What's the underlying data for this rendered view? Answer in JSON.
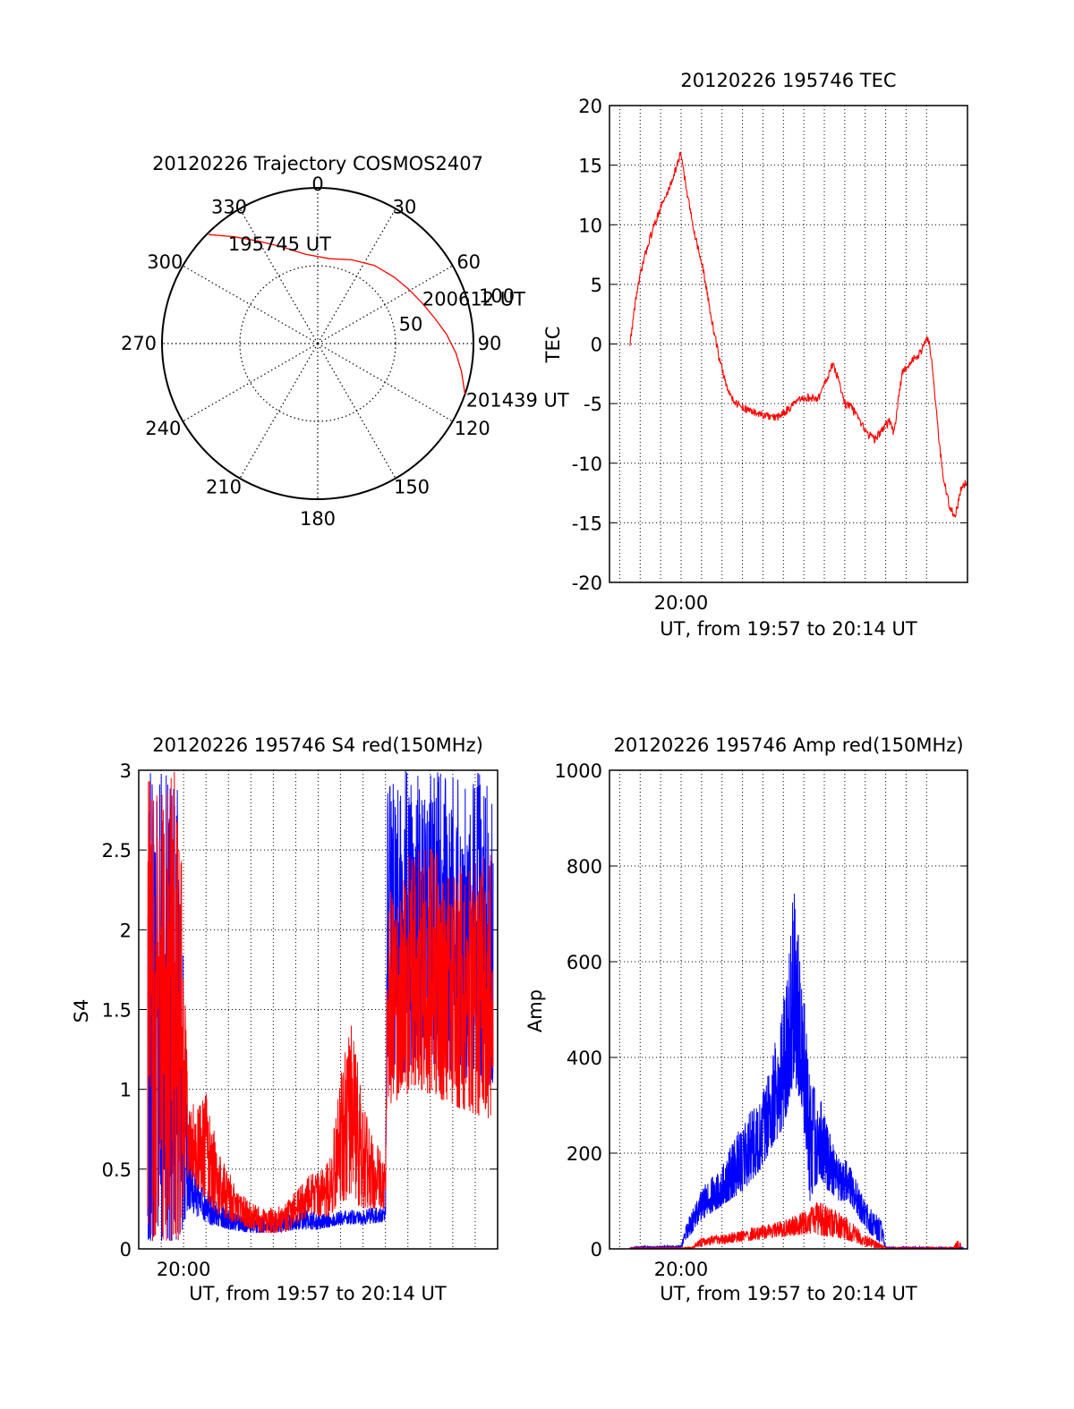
{
  "chart_data": [
    {
      "id": "trajectory",
      "type": "polar",
      "title": "20120226 Trajectory COSMOS2407",
      "angle_labels": [
        "0",
        "30",
        "60",
        "90",
        "120",
        "150",
        "180",
        "210",
        "240",
        "270",
        "300",
        "330"
      ],
      "ring_labels": [
        "50",
        "100"
      ],
      "radial_range": [
        0,
        100
      ],
      "track": {
        "color": "#ff0000",
        "points": [
          {
            "az": 315,
            "zen": 99
          },
          {
            "az": 322,
            "zen": 87
          },
          {
            "az": 330,
            "zen": 76
          },
          {
            "az": 340,
            "zen": 66
          },
          {
            "az": 352,
            "zen": 58
          },
          {
            "az": 8,
            "zen": 55
          },
          {
            "az": 22,
            "zen": 58
          },
          {
            "az": 36,
            "zen": 62
          },
          {
            "az": 49,
            "zen": 65
          },
          {
            "az": 59,
            "zen": 68
          },
          {
            "az": 69,
            "zen": 72
          },
          {
            "az": 78,
            "zen": 77
          },
          {
            "az": 86,
            "zen": 83
          },
          {
            "az": 94,
            "zen": 89
          },
          {
            "az": 101,
            "zen": 94
          },
          {
            "az": 109,
            "zen": 100
          }
        ]
      },
      "annotations": [
        {
          "text": "195745 UT",
          "az": 318,
          "zen": 86
        },
        {
          "text": "200612 UT",
          "az": 67,
          "zen": 73
        },
        {
          "text": "201439 UT",
          "az": 111,
          "zen": 102
        }
      ]
    },
    {
      "id": "tec",
      "type": "line",
      "title": "20120226 195746 TEC",
      "xlabel": "UT, from 19:57 to 20:14 UT",
      "ylabel": "TEC",
      "xlim": [
        -3.5,
        14.0
      ],
      "ylim": [
        -20,
        20
      ],
      "xticks": [
        {
          "value": 0,
          "label": "20:00"
        }
      ],
      "yticks": [
        -20,
        -15,
        -10,
        -5,
        0,
        5,
        10,
        15,
        20
      ],
      "x_minor_gridlines": 16,
      "series": [
        {
          "color": "#ff0000",
          "noise": 0.35,
          "points": [
            [
              -2.5,
              0.0
            ],
            [
              -2.2,
              4.0
            ],
            [
              -1.9,
              6.5
            ],
            [
              -1.6,
              8.5
            ],
            [
              -1.3,
              10.0
            ],
            [
              -1.0,
              11.5
            ],
            [
              -0.7,
              12.5
            ],
            [
              -0.4,
              14.0
            ],
            [
              -0.1,
              15.5
            ],
            [
              0.0,
              16.0
            ],
            [
              0.3,
              12.5
            ],
            [
              0.7,
              9.0
            ],
            [
              1.1,
              6.0
            ],
            [
              1.5,
              2.0
            ],
            [
              1.9,
              -1.5
            ],
            [
              2.3,
              -4.0
            ],
            [
              2.7,
              -5.0
            ],
            [
              3.2,
              -5.5
            ],
            [
              3.7,
              -5.8
            ],
            [
              4.2,
              -6.1
            ],
            [
              4.7,
              -6.2
            ],
            [
              5.2,
              -5.5
            ],
            [
              5.7,
              -4.8
            ],
            [
              6.2,
              -4.5
            ],
            [
              6.7,
              -4.6
            ],
            [
              7.1,
              -3.0
            ],
            [
              7.4,
              -1.7
            ],
            [
              7.7,
              -3.0
            ],
            [
              8.0,
              -5.0
            ],
            [
              8.3,
              -5.2
            ],
            [
              8.7,
              -6.5
            ],
            [
              9.1,
              -7.5
            ],
            [
              9.5,
              -8.0
            ],
            [
              9.9,
              -7.0
            ],
            [
              10.2,
              -6.5
            ],
            [
              10.4,
              -7.5
            ],
            [
              10.6,
              -5.0
            ],
            [
              10.8,
              -2.5
            ],
            [
              11.2,
              -1.5
            ],
            [
              11.6,
              -1.0
            ],
            [
              11.9,
              0.0
            ],
            [
              12.1,
              0.5
            ],
            [
              12.3,
              -2.0
            ],
            [
              12.6,
              -8.0
            ],
            [
              12.8,
              -11.0
            ],
            [
              13.1,
              -13.5
            ],
            [
              13.4,
              -14.5
            ],
            [
              13.7,
              -12.0
            ],
            [
              14.0,
              -11.5
            ]
          ]
        }
      ]
    },
    {
      "id": "s4",
      "type": "line",
      "title": "20120226 195746 S4 red(150MHz)",
      "xlabel": "UT, from 19:57 to 20:14 UT",
      "ylabel": "S4",
      "xlim": [
        -2.0,
        14.0
      ],
      "ylim": [
        0,
        3
      ],
      "xticks": [
        {
          "value": 0,
          "label": "20:00"
        }
      ],
      "yticks": [
        {
          "value": 0,
          "label": "0"
        },
        {
          "value": 0.5,
          "label": "0.5"
        },
        {
          "value": 1,
          "label": "1"
        },
        {
          "value": 1.5,
          "label": "1.5"
        },
        {
          "value": 2,
          "label": "2"
        },
        {
          "value": 2.5,
          "label": "2.5"
        },
        {
          "value": 3,
          "label": "3"
        }
      ],
      "x_minor_gridlines": 16,
      "series": [
        {
          "color": "#0000ff",
          "envelope": [
            [
              -1.6,
              0.05,
              3.0
            ],
            [
              -0.2,
              0.05,
              3.0
            ],
            [
              0.2,
              0.25,
              0.65
            ],
            [
              0.6,
              0.2,
              0.42
            ],
            [
              1.2,
              0.15,
              0.35
            ],
            [
              2.0,
              0.12,
              0.25
            ],
            [
              3.0,
              0.1,
              0.2
            ],
            [
              4.0,
              0.1,
              0.2
            ],
            [
              5.0,
              0.12,
              0.22
            ],
            [
              5.4,
              0.12,
              0.28
            ],
            [
              6.0,
              0.12,
              0.22
            ],
            [
              7.0,
              0.15,
              0.24
            ],
            [
              8.0,
              0.15,
              0.25
            ],
            [
              9.0,
              0.17,
              0.27
            ],
            [
              9.1,
              1.0,
              3.0
            ],
            [
              10.5,
              1.2,
              3.0
            ],
            [
              12.0,
              1.1,
              3.0
            ],
            [
              13.8,
              1.0,
              3.0
            ]
          ]
        },
        {
          "color": "#ff0000",
          "envelope": [
            [
              -1.6,
              0.05,
              3.0
            ],
            [
              -0.2,
              0.05,
              3.0
            ],
            [
              0.2,
              0.45,
              0.95
            ],
            [
              1.0,
              0.3,
              1.0
            ],
            [
              1.6,
              0.2,
              0.6
            ],
            [
              2.5,
              0.15,
              0.35
            ],
            [
              3.5,
              0.1,
              0.25
            ],
            [
              4.5,
              0.1,
              0.28
            ],
            [
              5.5,
              0.2,
              0.45
            ],
            [
              6.5,
              0.2,
              0.55
            ],
            [
              7.0,
              0.3,
              1.1
            ],
            [
              7.5,
              0.3,
              1.45
            ],
            [
              8.0,
              0.25,
              0.9
            ],
            [
              8.5,
              0.25,
              0.7
            ],
            [
              9.0,
              0.25,
              0.55
            ],
            [
              9.1,
              0.9,
              2.2
            ],
            [
              10.5,
              1.0,
              2.6
            ],
            [
              12.0,
              0.9,
              2.4
            ],
            [
              13.8,
              0.8,
              2.5
            ]
          ]
        }
      ]
    },
    {
      "id": "amp",
      "type": "line",
      "title": "20120226 195746 Amp red(150MHz)",
      "xlabel": "UT, from 19:57 to 20:14 UT",
      "ylabel": "Amp",
      "xlim": [
        -3.5,
        14.0
      ],
      "ylim": [
        0,
        1000
      ],
      "xticks": [
        {
          "value": 0,
          "label": "20:00"
        }
      ],
      "yticks": [
        0,
        200,
        400,
        600,
        800,
        1000
      ],
      "x_minor_gridlines": 16,
      "series": [
        {
          "color": "#0000ff",
          "envelope": [
            [
              -2.5,
              0,
              5
            ],
            [
              0.0,
              0,
              8
            ],
            [
              0.3,
              20,
              60
            ],
            [
              1.0,
              60,
              130
            ],
            [
              2.0,
              90,
              170
            ],
            [
              3.0,
              120,
              280
            ],
            [
              3.8,
              160,
              300
            ],
            [
              4.3,
              200,
              370
            ],
            [
              5.0,
              250,
              520
            ],
            [
              5.5,
              350,
              770
            ],
            [
              5.9,
              300,
              600
            ],
            [
              6.3,
              100,
              350
            ],
            [
              6.8,
              150,
              330
            ],
            [
              7.2,
              120,
              250
            ],
            [
              7.6,
              100,
              200
            ],
            [
              8.2,
              100,
              180
            ],
            [
              9.0,
              40,
              100
            ],
            [
              9.8,
              10,
              60
            ],
            [
              10.0,
              0,
              5
            ],
            [
              13.8,
              0,
              3
            ]
          ]
        },
        {
          "color": "#ff0000",
          "envelope": [
            [
              -2.5,
              0,
              2
            ],
            [
              0.5,
              0,
              4
            ],
            [
              1.0,
              5,
              25
            ],
            [
              2.0,
              10,
              30
            ],
            [
              3.0,
              15,
              40
            ],
            [
              4.0,
              20,
              50
            ],
            [
              5.0,
              25,
              60
            ],
            [
              6.0,
              30,
              80
            ],
            [
              6.6,
              30,
              100
            ],
            [
              7.2,
              25,
              90
            ],
            [
              8.0,
              20,
              70
            ],
            [
              9.0,
              5,
              30
            ],
            [
              9.8,
              0,
              10
            ],
            [
              10.0,
              0,
              3
            ],
            [
              13.3,
              0,
              3
            ],
            [
              13.5,
              0,
              20
            ],
            [
              13.7,
              0,
              10
            ]
          ]
        }
      ]
    }
  ]
}
